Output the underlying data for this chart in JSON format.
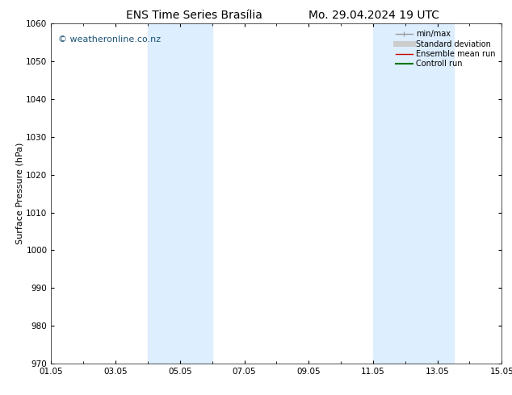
{
  "title_left": "ENS Time Series Brasília",
  "title_right": "Mo. 29.04.2024 19 UTC",
  "ylabel": "Surface Pressure (hPa)",
  "ylim": [
    970,
    1060
  ],
  "yticks": [
    970,
    980,
    990,
    1000,
    1010,
    1020,
    1030,
    1040,
    1050,
    1060
  ],
  "xtick_labels": [
    "01.05",
    "03.05",
    "05.05",
    "07.05",
    "09.05",
    "11.05",
    "13.05",
    "15.05"
  ],
  "xtick_positions": [
    0,
    2,
    4,
    6,
    8,
    10,
    12,
    14
  ],
  "xlim": [
    0,
    14
  ],
  "shaded_bands": [
    {
      "x_start": 3.0,
      "x_end": 5.0,
      "color": "#ddeeff"
    },
    {
      "x_start": 10.0,
      "x_end": 12.5,
      "color": "#ddeeff"
    }
  ],
  "watermark": "© weatheronline.co.nz",
  "watermark_color": "#1a5276",
  "watermark_fontsize": 8,
  "legend_items": [
    {
      "label": "min/max",
      "color": "#999999",
      "lw": 1
    },
    {
      "label": "Standard deviation",
      "color": "#cccccc",
      "lw": 5
    },
    {
      "label": "Ensemble mean run",
      "color": "#cc0000",
      "lw": 1
    },
    {
      "label": "Controll run",
      "color": "#007700",
      "lw": 1.5
    }
  ],
  "bg_color": "#ffffff",
  "plot_bg_color": "#ffffff",
  "title_fontsize": 10,
  "axis_label_fontsize": 8,
  "tick_fontsize": 7.5,
  "legend_fontsize": 7
}
